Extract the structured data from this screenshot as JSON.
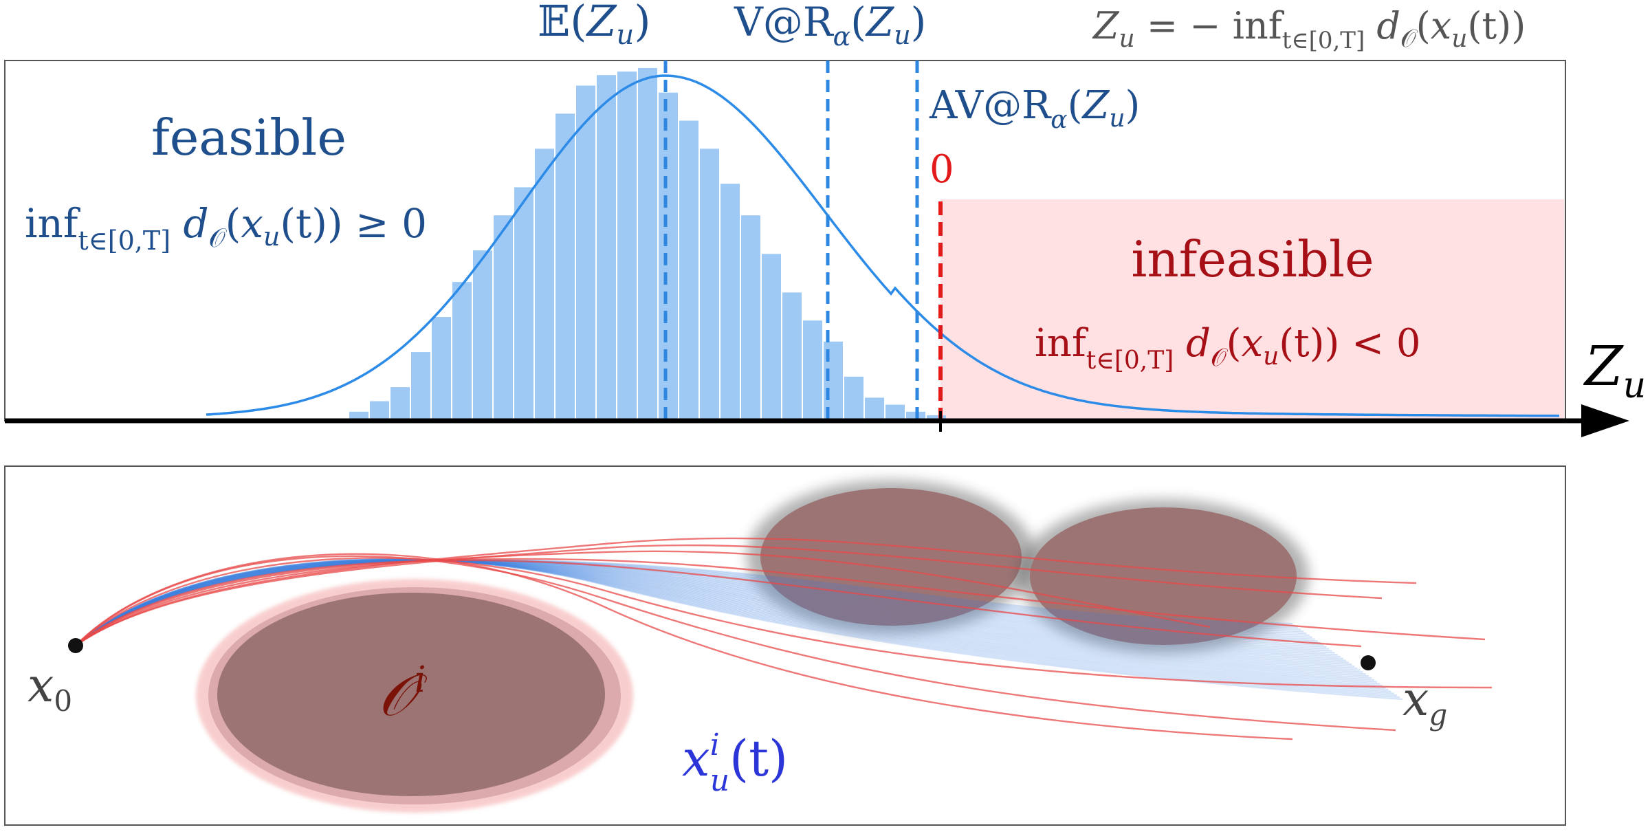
{
  "header": {
    "expectation": {
      "pre": "𝔼(",
      "var": "Z",
      "sub": "u",
      "post": ")"
    },
    "var_at_risk": {
      "pre": "V@R",
      "sub1": "α",
      "mid": "(",
      "var": "Z",
      "sub2": "u",
      "post": ")"
    },
    "definition": {
      "lhs": "Z",
      "lhs_sub": "u",
      "eq": " = − inf",
      "range": "t∈[0,T]",
      "d": " d",
      "set": "𝒪",
      "arg_open": "(",
      "x": "x",
      "x_sub": "u",
      "arg_close": "(t))"
    }
  },
  "histogram": {
    "bin_heights": [
      0.02,
      0.05,
      0.09,
      0.19,
      0.29,
      0.39,
      0.48,
      0.58,
      0.66,
      0.77,
      0.87,
      0.95,
      0.98,
      0.99,
      1.0,
      0.93,
      0.85,
      0.77,
      0.67,
      0.58,
      0.47,
      0.36,
      0.28,
      0.22,
      0.12,
      0.06,
      0.04,
      0.02,
      0.01
    ],
    "bar_color": "#9ec9f5",
    "density_color": "#2d8be8"
  },
  "markers": {
    "avar": {
      "pre": "AV@R",
      "sub1": "α",
      "mid": "(",
      "var": "Z",
      "sub2": "u",
      "post": ")"
    },
    "zero_label": "0",
    "line_color": "#2d86e0",
    "zero_color": "#e31a1c"
  },
  "feasible": {
    "title": "feasible",
    "cond": {
      "pre": "inf",
      "range": "t∈[0,T]",
      "d": " d",
      "set": "𝒪",
      "open": "(",
      "x": "x",
      "x_sub": "u",
      "close": "(t)) ≥ 0"
    },
    "color": "#1f4e8c"
  },
  "infeasible": {
    "title": "infeasible",
    "cond": {
      "pre": "inf",
      "range": "t∈[0,T]",
      "d": " d",
      "set": "𝒪",
      "open": "(",
      "x": "x",
      "x_sub": "u",
      "close": "(t)) < 0"
    },
    "color": "#a50f15",
    "fill": "#ffe1e3"
  },
  "axis": {
    "var": "Z",
    "sub": "u"
  },
  "scene": {
    "start": {
      "var": "x",
      "sub": "0"
    },
    "goal": {
      "var": "x",
      "sub": "g"
    },
    "obstacle": {
      "var": "𝒪",
      "sup": "i"
    },
    "trajectory": {
      "var": "x",
      "sup": "i",
      "sub": "u",
      "post": "(t)"
    },
    "obstacle_color": "#9c7474",
    "safe_traj_color": "#3a7fe0",
    "unsafe_traj_color": "#e84a4a"
  }
}
